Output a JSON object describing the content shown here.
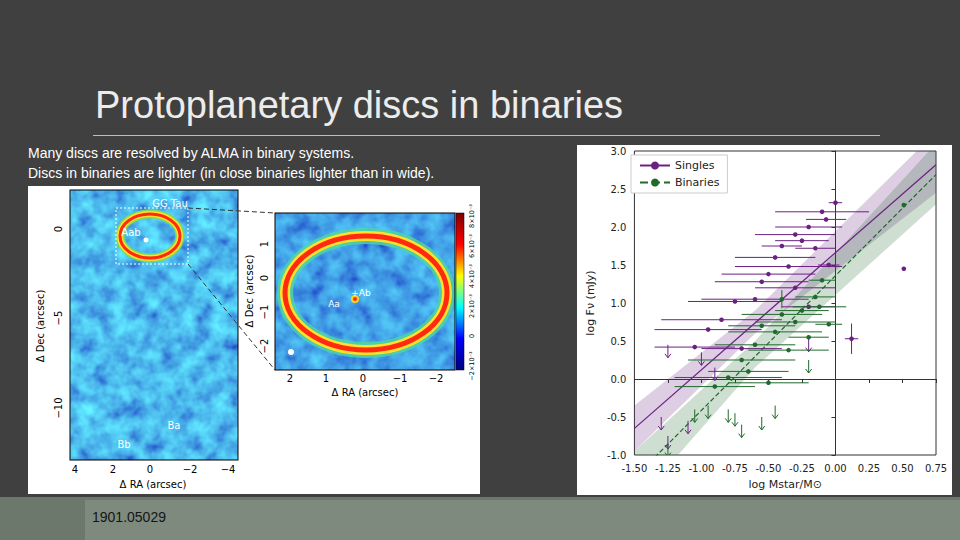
{
  "slide": {
    "title": "Protoplanetary discs in binaries",
    "text": [
      "Many discs are resolved by ALMA in binary systems.",
      "Discs in binaries are lighter (in close binaries lighter than in wide)."
    ],
    "figure": {
      "map": {
        "labels": [
          "GG Tau",
          "Aab",
          "Ba",
          "Bb"
        ],
        "xlabel": "Δ RA (arcsec)",
        "ylabel": "Δ Dec (arcsec)",
        "xticks": [
          "4",
          "2",
          "0",
          "−2",
          "−4"
        ],
        "yticks": [
          "0",
          "−5",
          "−10"
        ]
      },
      "inset": {
        "labels": [
          "Aa",
          "+Ab"
        ],
        "xlabel": "Δ RA (arcsec)",
        "ylabel": "Δ Dec (arcsec)",
        "xticks": [
          "2",
          "1",
          "0",
          "−1",
          "−2"
        ],
        "yticks": [
          "1",
          "0",
          "−1",
          "−2"
        ],
        "colorbar_ticks": [
          "−2×10⁻³",
          "0",
          "2×10⁻³",
          "4×10⁻³",
          "6×10⁻³",
          "8×10⁻³"
        ]
      }
    },
    "footer": "1901.05029"
  },
  "chart_data": {
    "type": "scatter",
    "xlabel": "log Mstar/M⊙",
    "ylabel": "log Fν (mJy)",
    "xlim": [
      -1.5,
      0.75
    ],
    "xticks": [
      {
        "value": -1.5,
        "label": "-1.50"
      },
      {
        "value": -1.25,
        "label": "-1.25"
      },
      {
        "value": -1.0,
        "label": "-1.00"
      },
      {
        "value": -0.75,
        "label": "-0.75"
      },
      {
        "value": -0.5,
        "label": "-0.50"
      },
      {
        "value": -0.25,
        "label": "-0.25"
      },
      {
        "value": 0,
        "label": "0.00"
      },
      {
        "value": 0.25,
        "label": "0.25"
      },
      {
        "value": 0.5,
        "label": "0.50"
      },
      {
        "value": 0.75,
        "label": "0.75"
      }
    ],
    "ylim": [
      -1.0,
      3.0
    ],
    "yticks": [
      {
        "value": -1.0,
        "label": "-1.0"
      },
      {
        "value": -0.5,
        "label": "-0.5"
      },
      {
        "value": 0,
        "label": "0.0"
      },
      {
        "value": 0.5,
        "label": "0.5"
      },
      {
        "value": 1.0,
        "label": "1.0"
      },
      {
        "value": 1.5,
        "label": "1.5"
      },
      {
        "value": 2.0,
        "label": "2.0"
      },
      {
        "value": 2.5,
        "label": "2.5"
      },
      {
        "value": 3.0,
        "label": "3.0"
      }
    ],
    "grid": false,
    "legend": "upper left",
    "series": [
      {
        "name": "Singles",
        "color": "#6a2182",
        "line_style": "solid",
        "x": [
          -0.1,
          0.0,
          -0.07,
          -0.2,
          -0.3,
          -0.25,
          -0.4,
          -0.15,
          -0.45,
          -0.35,
          -0.05,
          0.51,
          -0.5,
          -0.55,
          -0.3,
          -0.6,
          -0.75,
          -0.2,
          -0.85,
          -0.95,
          -1.05,
          -0.7,
          0.12,
          -1.25,
          -1.0,
          -0.9,
          -1.3,
          -1.1,
          -1.25,
          -0.2
        ],
        "values": [
          2.2,
          2.32,
          2.1,
          2.0,
          1.9,
          1.82,
          1.75,
          1.72,
          1.6,
          1.48,
          1.5,
          1.45,
          1.38,
          1.28,
          1.2,
          1.05,
          1.02,
          0.95,
          0.78,
          0.65,
          0.42,
          0.4,
          0.53,
          0.45,
          0.35,
          0.15,
          -0.5,
          -0.55,
          -0.75,
          0.53
        ],
        "xerr": [
          0.35,
          0.05,
          0.15,
          0.25,
          0.3,
          0.2,
          0.15,
          0.15,
          0.3,
          0.4,
          0.08,
          0,
          0.35,
          0.35,
          0.3,
          0.4,
          0.35,
          0.2,
          0.45,
          0.4,
          0.3,
          0.3,
          0.05,
          0,
          0,
          0,
          0,
          0,
          0,
          0
        ],
        "yerr": [
          0,
          0,
          0,
          0,
          0,
          0,
          0,
          0,
          0,
          0,
          0,
          0,
          0,
          0,
          0,
          0,
          0,
          0,
          0,
          0,
          0,
          0,
          0.2,
          0,
          0,
          0,
          0,
          0,
          0,
          0
        ],
        "upper_limit": [
          false,
          false,
          false,
          false,
          false,
          false,
          false,
          false,
          false,
          false,
          false,
          false,
          false,
          false,
          false,
          false,
          false,
          false,
          false,
          false,
          false,
          false,
          false,
          true,
          true,
          true,
          true,
          true,
          true,
          true
        ],
        "fit": {
          "x": [
            -1.5,
            0.75
          ],
          "values": [
            -0.65,
            2.82
          ]
        },
        "band": {
          "x": [
            -1.5,
            -0.6,
            0.75
          ],
          "low": [
            -0.95,
            0.6,
            2.45
          ],
          "high": [
            -0.35,
            0.9,
            3.25
          ]
        }
      },
      {
        "name": "Binaries",
        "color": "#1f6a2c",
        "line_style": "dashed",
        "x": [
          0.51,
          -0.1,
          -0.15,
          -0.12,
          -0.25,
          -0.4,
          -0.3,
          -0.05,
          -0.55,
          -0.45,
          -0.2,
          -0.6,
          -0.35,
          -0.7,
          -0.65,
          -0.8,
          -0.5,
          -0.9,
          -0.4,
          -0.95,
          -1.05,
          -0.8,
          -0.75,
          -0.45,
          -0.55,
          -1.25,
          -0.7,
          -0.2
        ],
        "values": [
          2.29,
          1.3,
          1.08,
          0.95,
          0.9,
          0.85,
          0.75,
          0.72,
          0.7,
          0.62,
          0.55,
          0.45,
          0.38,
          0.25,
          0.1,
          0.02,
          -0.05,
          -0.1,
          1.05,
          -0.35,
          -0.4,
          -0.4,
          -0.45,
          -0.35,
          -0.5,
          -0.85,
          -0.6,
          0.25
        ],
        "xerr": [
          0,
          0.1,
          0.15,
          0.2,
          0.2,
          0.3,
          0.3,
          0.1,
          0.25,
          0.35,
          0.15,
          0.3,
          0.3,
          0.4,
          0.3,
          0.4,
          0.3,
          0.3,
          0,
          0,
          0,
          0,
          0,
          0,
          0,
          0,
          0,
          0
        ],
        "yerr": [
          0,
          0,
          0,
          0,
          0,
          0,
          0,
          0,
          0,
          0,
          0,
          0,
          0,
          0,
          0,
          0,
          0,
          0,
          0.12,
          0,
          0,
          0,
          0,
          0,
          0,
          0,
          0,
          0
        ],
        "upper_limit": [
          false,
          false,
          false,
          false,
          false,
          false,
          false,
          false,
          false,
          false,
          false,
          false,
          false,
          false,
          false,
          false,
          false,
          false,
          false,
          true,
          true,
          true,
          true,
          true,
          true,
          true,
          true,
          true
        ],
        "fit": {
          "x": [
            -1.5,
            0.75
          ],
          "values": [
            -1.3,
            2.69
          ]
        },
        "band": {
          "x": [
            -1.5,
            -0.6,
            0.75
          ],
          "low": [
            -1.65,
            0.15,
            2.3
          ],
          "high": [
            -0.95,
            0.5,
            3.1
          ]
        }
      }
    ]
  }
}
